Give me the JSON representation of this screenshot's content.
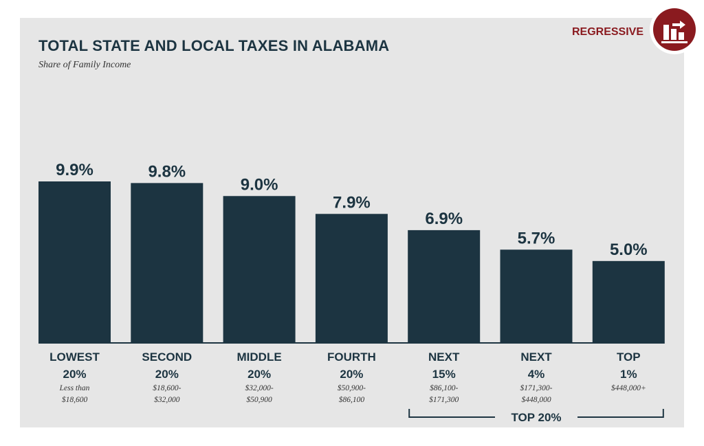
{
  "chart_data": {
    "type": "bar",
    "title": "TOTAL STATE AND LOCAL TAXES IN ALABAMA",
    "subtitle": "Share of Family Income",
    "badge": "REGRESSIVE",
    "ylim": [
      0,
      11
    ],
    "unit": "%",
    "values": [
      9.9,
      9.8,
      9.0,
      7.9,
      6.9,
      5.7,
      5.0
    ],
    "value_labels": [
      "9.9%",
      "9.8%",
      "9.0%",
      "7.9%",
      "6.9%",
      "5.7%",
      "5.0%"
    ],
    "categories": [
      {
        "line1": "LOWEST",
        "line2": "20%",
        "range1": "Less than",
        "range2": "$18,600"
      },
      {
        "line1": "SECOND",
        "line2": "20%",
        "range1": "$18,600-",
        "range2": "$32,000"
      },
      {
        "line1": "MIDDLE",
        "line2": "20%",
        "range1": "$32,000-",
        "range2": "$50,900"
      },
      {
        "line1": "FOURTH",
        "line2": "20%",
        "range1": "$50,900-",
        "range2": "$86,100"
      },
      {
        "line1": "NEXT",
        "line2": "15%",
        "range1": "$86,100-",
        "range2": "$171,300"
      },
      {
        "line1": "NEXT",
        "line2": "4%",
        "range1": "$171,300-",
        "range2": "$448,000"
      },
      {
        "line1": "TOP",
        "line2": "1%",
        "range1": "$448,000+",
        "range2": ""
      }
    ],
    "group_bracket": {
      "label": "TOP 20%",
      "from_index": 4,
      "to_index": 6
    },
    "colors": {
      "bar": "#1c3441",
      "badge": "#8a1a1f",
      "background": "#e6e6e6"
    }
  }
}
